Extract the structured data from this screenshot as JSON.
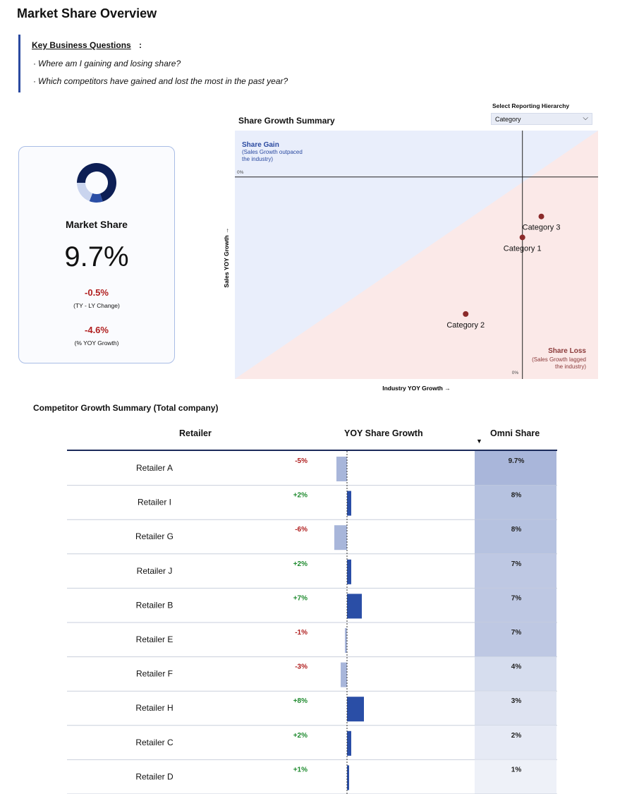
{
  "page": {
    "title": "Market Share Overview"
  },
  "questions": {
    "heading": "Key Business Questions",
    "colon": ":",
    "items": [
      "Where am I gaining and losing share?",
      "Which competitors have gained and lost the most in the past year?"
    ]
  },
  "kpi": {
    "title": "Market Share",
    "value": "9.7%",
    "change_value": "-0.5%",
    "change_label": "(TY - LY Change)",
    "growth_value": "-4.6%",
    "growth_label": "(% YOY Growth)",
    "donut_share": 0.7,
    "colors": {
      "dark": "#0d1f55",
      "mid": "#2a4ea6",
      "light": "#c9d4ee",
      "negative": "#b01e1e"
    }
  },
  "reporting": {
    "label": "Select Reporting Hierarchy",
    "selected": "Category"
  },
  "chart_data": [
    {
      "type": "scatter",
      "title": "Share Growth Summary",
      "xlabel": "Industry YOY Growth →",
      "ylabel": "Sales YOY Growth →",
      "x_zero_label": "0%",
      "y_zero_label": "0%",
      "points": [
        {
          "label": "Category 3",
          "x": 0.5,
          "y": -1.7
        },
        {
          "label": "Category 1",
          "x": 0.0,
          "y": -2.6
        },
        {
          "label": "Category 2",
          "x": -1.5,
          "y": -5.9
        }
      ],
      "zones": {
        "gain_title": "Share Gain",
        "gain_note": "(Sales Growth outpaced the industry)",
        "loss_title": "Share Loss",
        "loss_note": "(Sales Growth lagged the industry)"
      },
      "colors": {
        "gain": "#e9eefb",
        "loss": "#fbe9e8",
        "point": "#8b2a2a",
        "gain_text": "#2b4aa0",
        "loss_text": "#8b3a3a"
      }
    },
    {
      "type": "table",
      "title": "Competitor Growth Summary (Total company)",
      "columns": [
        "Retailer",
        "YOY Share Growth",
        "Omni Share"
      ],
      "sort_indicator": "▼",
      "rows": [
        {
          "retailer": "Retailer A",
          "growth": -5,
          "growth_label": "-5%",
          "share": 9.7,
          "share_label": "9.7%"
        },
        {
          "retailer": "Retailer I",
          "growth": 2,
          "growth_label": "+2%",
          "share": 8,
          "share_label": "8%"
        },
        {
          "retailer": "Retailer G",
          "growth": -6,
          "growth_label": "-6%",
          "share": 8,
          "share_label": "8%"
        },
        {
          "retailer": "Retailer J",
          "growth": 2,
          "growth_label": "+2%",
          "share": 7,
          "share_label": "7%"
        },
        {
          "retailer": "Retailer B",
          "growth": 7,
          "growth_label": "+7%",
          "share": 7,
          "share_label": "7%"
        },
        {
          "retailer": "Retailer E",
          "growth": -1,
          "growth_label": "-1%",
          "share": 7,
          "share_label": "7%"
        },
        {
          "retailer": "Retailer F",
          "growth": -3,
          "growth_label": "-3%",
          "share": 4,
          "share_label": "4%"
        },
        {
          "retailer": "Retailer H",
          "growth": 8,
          "growth_label": "+8%",
          "share": 3,
          "share_label": "3%"
        },
        {
          "retailer": "Retailer C",
          "growth": 2,
          "growth_label": "+2%",
          "share": 2,
          "share_label": "2%"
        },
        {
          "retailer": "Retailer D",
          "growth": 1,
          "growth_label": "+1%",
          "share": 1,
          "share_label": "1%"
        }
      ],
      "colors": {
        "pos_bar": "#2a4ea6",
        "neg_bar": "#a8b6da",
        "pos_text": "#1e8a2e",
        "neg_text": "#b01e1e",
        "share_high": "#a9b6da",
        "share_low": "#eef1f8"
      }
    }
  ]
}
